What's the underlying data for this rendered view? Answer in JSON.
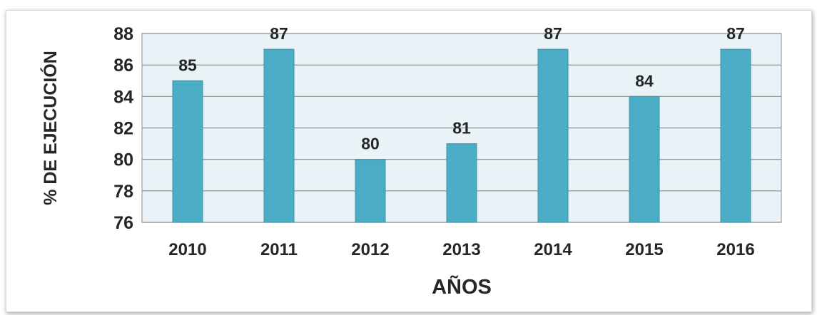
{
  "chart_data": {
    "type": "bar",
    "categories": [
      "2010",
      "2011",
      "2012",
      "2013",
      "2014",
      "2015",
      "2016"
    ],
    "values": [
      85,
      87,
      80,
      81,
      87,
      84,
      87
    ],
    "data_labels": [
      "85",
      "87",
      "80",
      "81",
      "87",
      "84",
      "87"
    ],
    "ylim": [
      76,
      88
    ],
    "yticks": [
      "76",
      "78",
      "80",
      "82",
      "84",
      "86",
      "88"
    ],
    "xlabel": "AÑOS",
    "ylabel": "% DE EJECUCIÓN",
    "grid": true,
    "legend": "none",
    "colors": {
      "bar": "#4BACC6",
      "bar_edge": "#3d93ab",
      "plot_bg": "#e9f3f7",
      "grid": "#8c8c8c",
      "text": "#262626"
    }
  }
}
